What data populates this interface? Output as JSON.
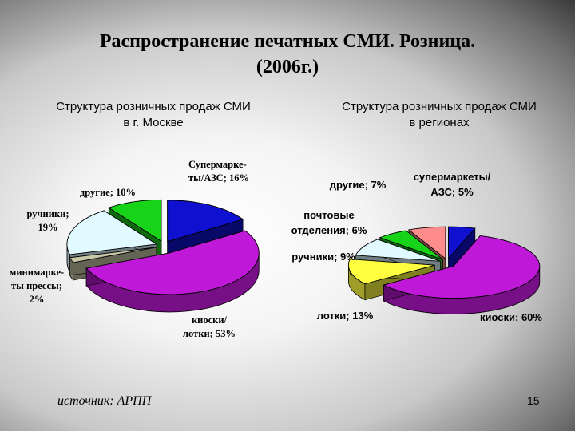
{
  "slide": {
    "title_line1": "Распространение печатных СМИ. Розница.",
    "title_line2": "(2006г.)",
    "source": "источник: АРПП",
    "page_number": "15"
  },
  "chart_data": [
    {
      "type": "pie",
      "title_line1": "Структура розничных продаж СМИ",
      "title_line2": "в г. Москве",
      "slices": [
        {
          "key": "supermarkets",
          "value": 16,
          "color": "#1010d0",
          "label_lines": [
            "Супермарке-",
            "ты/АЗС; 16%"
          ]
        },
        {
          "key": "kiosks",
          "value": 53,
          "color": "#c018d8",
          "label_lines": [
            "киоски/",
            "лотки; 53%"
          ]
        },
        {
          "key": "minimarkets",
          "value": 2,
          "color": "#c8c8a8",
          "label_lines": [
            "минимарке-",
            "ты прессы;",
            "2%"
          ]
        },
        {
          "key": "hawkers",
          "value": 19,
          "color": "#e0faff",
          "label_lines": [
            "ручники;",
            "19%"
          ]
        },
        {
          "key": "other",
          "value": 10,
          "color": "#18d418",
          "label_lines": [
            "другие; 10%"
          ]
        }
      ]
    },
    {
      "type": "pie",
      "title_line1": "Структура розничных продаж СМИ",
      "title_line2": "в регионах",
      "slices": [
        {
          "key": "supermarkets",
          "value": 5,
          "color": "#1010d0",
          "label_lines": [
            "супермаркеты/",
            "АЗС; 5%"
          ]
        },
        {
          "key": "kiosks",
          "value": 60,
          "color": "#c018d8",
          "label_lines": [
            "киоски; 60%"
          ]
        },
        {
          "key": "stalls",
          "value": 13,
          "color": "#ffff40",
          "label_lines": [
            "лотки; 13%"
          ]
        },
        {
          "key": "hawkers",
          "value": 9,
          "color": "#e0faff",
          "label_lines": [
            "ручники; 9%"
          ]
        },
        {
          "key": "post_offices",
          "value": 6,
          "color": "#18d418",
          "label_lines": [
            "почтовые",
            "отделения; 6%"
          ]
        },
        {
          "key": "other",
          "value": 7,
          "color": "#ff8c8c",
          "label_lines": [
            "другие; 7%"
          ]
        }
      ]
    }
  ]
}
